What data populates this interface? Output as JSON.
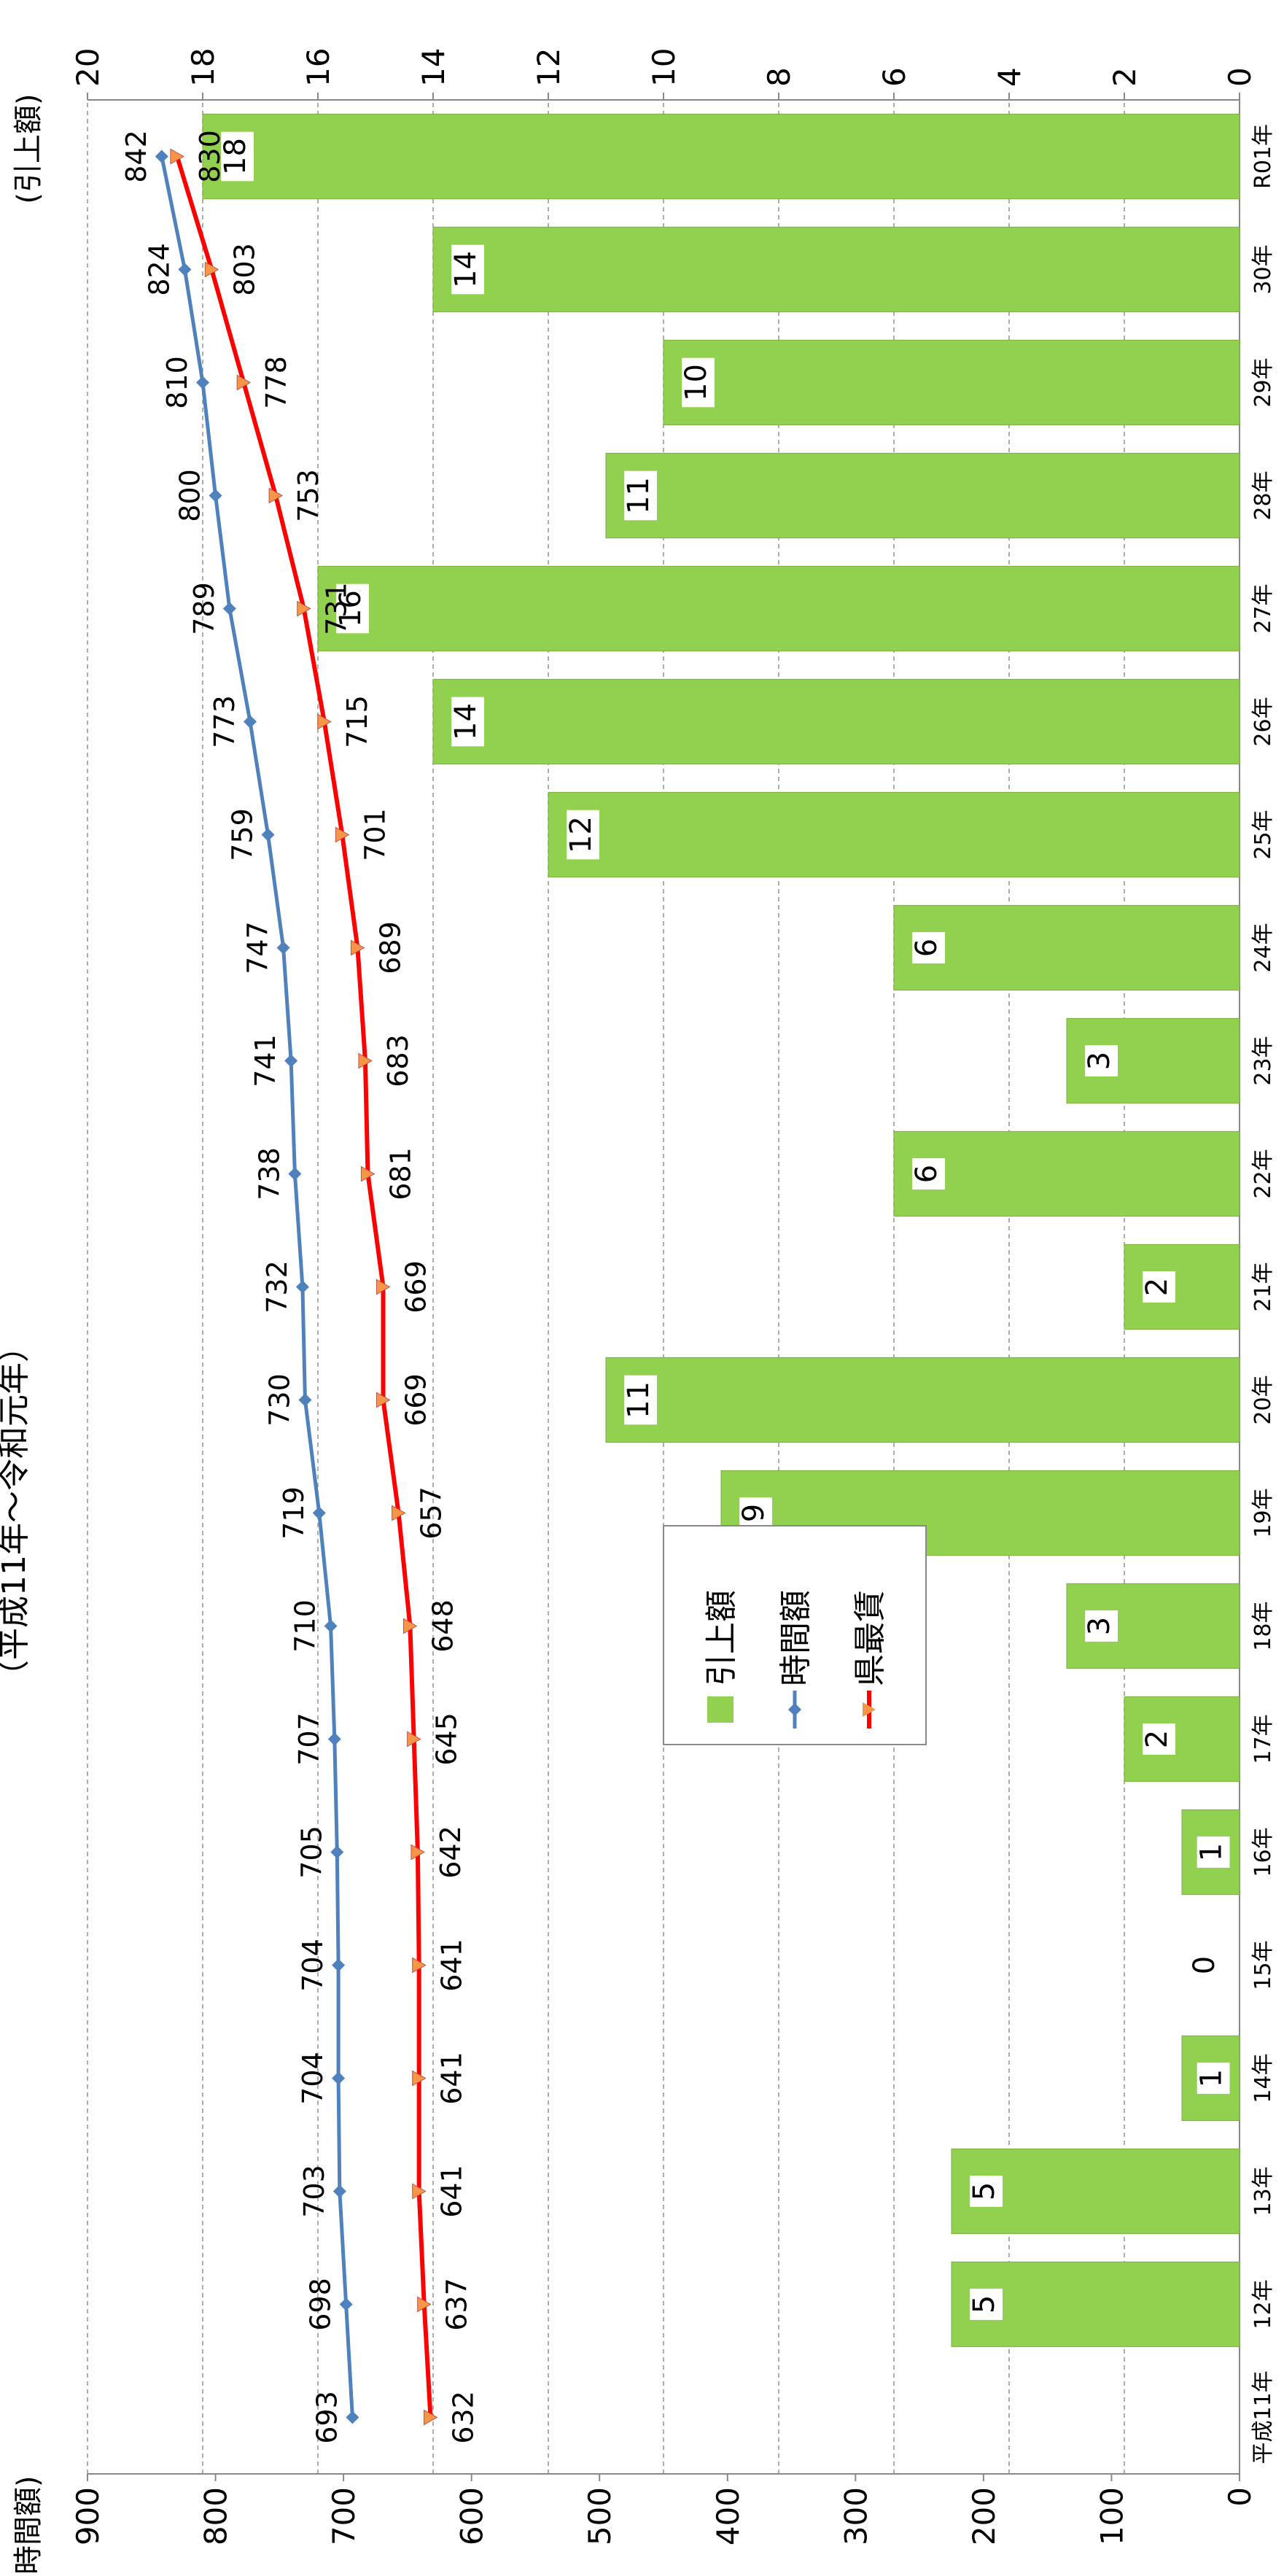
{
  "chart_data": {
    "type": "bar",
    "title": "（平成11年～令和元年）",
    "y_left_label": "(時間額)",
    "y_right_label": "(引上額)",
    "categories": [
      "平成11年",
      "12年",
      "13年",
      "14年",
      "15年",
      "16年",
      "17年",
      "18年",
      "19年",
      "20年",
      "21年",
      "22年",
      "23年",
      "24年",
      "25年",
      "26年",
      "27年",
      "28年",
      "29年",
      "30年",
      "R01年"
    ],
    "left_axis": {
      "ylim": [
        0,
        900
      ],
      "ticks": [
        "0",
        "100",
        "200",
        "300",
        "400",
        "500",
        "600",
        "700",
        "800",
        "900"
      ]
    },
    "right_axis": {
      "ylim": [
        0,
        20
      ],
      "ticks": [
        "0",
        "2",
        "4",
        "6",
        "8",
        "10",
        "12",
        "14",
        "16",
        "18",
        "20"
      ]
    },
    "grid": true,
    "legend_position": "center",
    "series": [
      {
        "name": "引上額",
        "type": "bar",
        "axis": "right",
        "color": "#92D050",
        "values": [
          null,
          5,
          5,
          1,
          0,
          1,
          2,
          3,
          9,
          11,
          2,
          6,
          3,
          6,
          12,
          14,
          16,
          11,
          10,
          14,
          18
        ],
        "labels": [
          "",
          "5",
          "5",
          "1",
          "0",
          "1",
          "2",
          "3",
          "9",
          "11",
          "2",
          "6",
          "3",
          "6",
          "12",
          "14",
          "16",
          "11",
          "10",
          "14",
          "18"
        ]
      },
      {
        "name": "時間額",
        "type": "line",
        "axis": "left",
        "color": "#4F81BD",
        "values": [
          693,
          698,
          703,
          704,
          704,
          705,
          707,
          710,
          719,
          730,
          732,
          738,
          741,
          747,
          759,
          773,
          789,
          800,
          810,
          824,
          842
        ],
        "labels": [
          "693",
          "698",
          "703",
          "704",
          "704",
          "705",
          "707",
          "710",
          "719",
          "730",
          "732",
          "738",
          "741",
          "747",
          "759",
          "773",
          "789",
          "800",
          "810",
          "824",
          "842"
        ]
      },
      {
        "name": "県最賃",
        "type": "line",
        "axis": "left",
        "color": "#FF0000",
        "marker_color": "#F79646",
        "values": [
          632,
          637,
          641,
          641,
          641,
          642,
          645,
          648,
          657,
          669,
          669,
          681,
          683,
          689,
          701,
          715,
          731,
          753,
          778,
          803,
          830
        ],
        "labels": [
          "632",
          "637",
          "641",
          "641",
          "641",
          "642",
          "645",
          "648",
          "657",
          "669",
          "669",
          "681",
          "683",
          "689",
          "701",
          "715",
          "731",
          "753",
          "778",
          "803",
          "830"
        ]
      }
    ]
  }
}
